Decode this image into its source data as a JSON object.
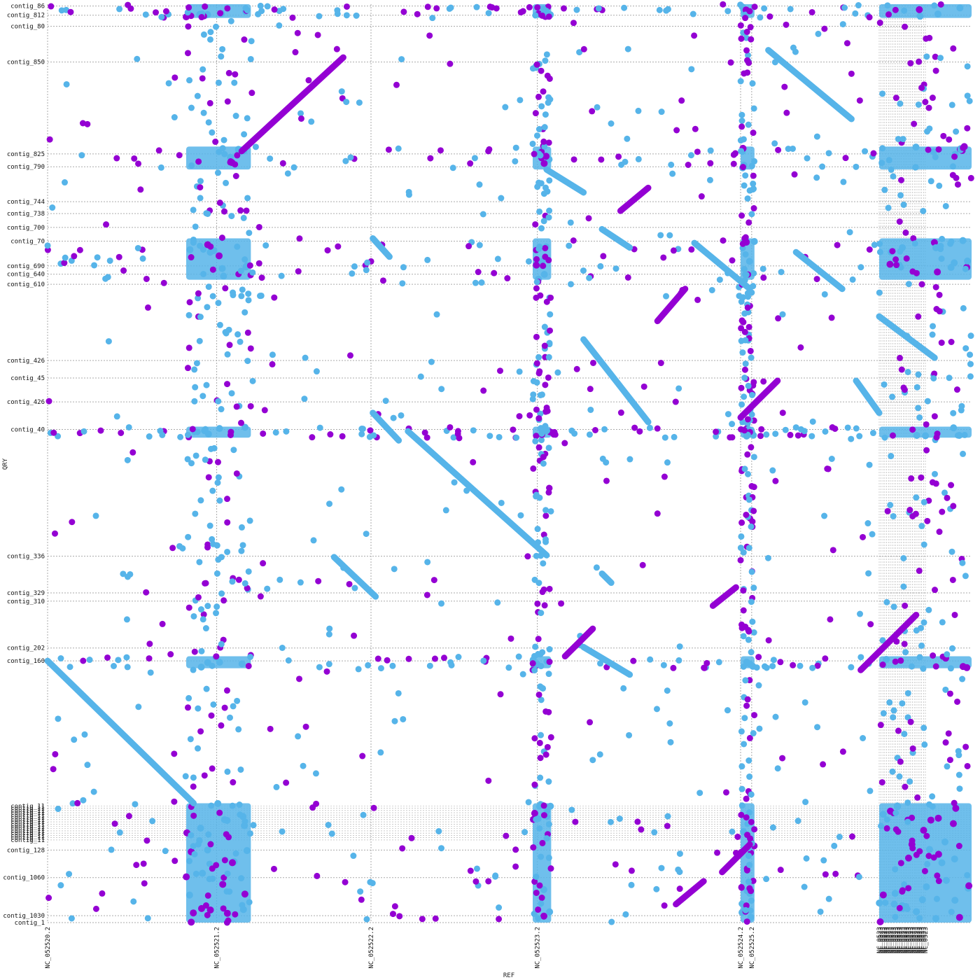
{
  "chart_data": {
    "type": "scatter",
    "title": "",
    "xlabel": "REF",
    "ylabel": "QRY",
    "grid": true,
    "colors": {
      "forward": "#9400d3",
      "reverse": "#56b4e9",
      "grid": "#aaaaaa"
    },
    "x_ticks": [
      {
        "label": "NC_052520.2",
        "value": 0.0
      },
      {
        "label": "NC_052521.2",
        "value": 0.183
      },
      {
        "label": "NC_052522.2",
        "value": 0.35
      },
      {
        "label": "NC_052523.2",
        "value": 0.53
      },
      {
        "label": "NC_052524.2",
        "value": 0.75
      },
      {
        "label": "NC_052525.2",
        "value": 0.762
      }
    ],
    "x_dense_ticks": {
      "label": "NC_0523",
      "from": 0.9,
      "to": 0.95,
      "count": 26
    },
    "y_ticks": [
      {
        "label": "contig_86",
        "value": 0.998
      },
      {
        "label": "contig_812",
        "value": 0.988
      },
      {
        "label": "contig_80",
        "value": 0.976
      },
      {
        "label": "contig_850",
        "value": 0.937
      },
      {
        "label": "contig_825",
        "value": 0.837
      },
      {
        "label": "contig_790",
        "value": 0.823
      },
      {
        "label": "contig_744",
        "value": 0.785
      },
      {
        "label": "contig_738",
        "value": 0.772
      },
      {
        "label": "contig_700",
        "value": 0.757
      },
      {
        "label": "contig_70",
        "value": 0.742
      },
      {
        "label": "contig_690",
        "value": 0.715
      },
      {
        "label": "contig_640",
        "value": 0.706
      },
      {
        "label": "contig_610",
        "value": 0.695
      },
      {
        "label": "contig_426",
        "value": 0.612
      },
      {
        "label": "contig_45",
        "value": 0.593
      },
      {
        "label": "contig_426",
        "value": 0.567
      },
      {
        "label": "contig_40",
        "value": 0.537
      },
      {
        "label": "contig_336",
        "value": 0.399
      },
      {
        "label": "contig_329",
        "value": 0.359
      },
      {
        "label": "contig_310",
        "value": 0.35
      },
      {
        "label": "contig_202",
        "value": 0.299
      },
      {
        "label": "contig_160",
        "value": 0.285
      },
      {
        "label": "contig_128",
        "value": 0.079
      },
      {
        "label": "contig_1060",
        "value": 0.049
      },
      {
        "label": "contig_1030",
        "value": 0.0075
      },
      {
        "label": "contig_1",
        "value": 0.0
      }
    ],
    "y_dense_ticks": {
      "label": "contig_11",
      "from": 0.09,
      "to": 0.127,
      "count": 16
    },
    "xlim": [
      0,
      1
    ],
    "ylim": [
      0,
      1
    ],
    "series": [
      {
        "name": "",
        "orientation": "reverse",
        "segments": [
          [
            0.0,
            0.285,
            0.158,
            0.13
          ],
          [
            0.352,
            0.555,
            0.38,
            0.525
          ],
          [
            0.39,
            0.535,
            0.54,
            0.4
          ],
          [
            0.31,
            0.398,
            0.355,
            0.355
          ],
          [
            0.352,
            0.745,
            0.37,
            0.725
          ],
          [
            0.58,
            0.635,
            0.65,
            0.545
          ],
          [
            0.54,
            0.82,
            0.58,
            0.795
          ],
          [
            0.6,
            0.755,
            0.63,
            0.735
          ],
          [
            0.9,
            0.66,
            0.96,
            0.615
          ],
          [
            0.78,
            0.95,
            0.87,
            0.875
          ],
          [
            0.875,
            0.59,
            0.9,
            0.555
          ],
          [
            0.58,
            0.3,
            0.63,
            0.27
          ],
          [
            0.7,
            0.74,
            0.76,
            0.69
          ],
          [
            0.81,
            0.73,
            0.86,
            0.69
          ],
          [
            0.6,
            0.38,
            0.61,
            0.37
          ]
        ]
      },
      {
        "name": "",
        "orientation": "forward",
        "segments": [
          [
            0.21,
            0.84,
            0.32,
            0.942
          ],
          [
            0.66,
            0.655,
            0.69,
            0.69
          ],
          [
            0.62,
            0.775,
            0.65,
            0.8
          ],
          [
            0.75,
            0.55,
            0.79,
            0.59
          ],
          [
            0.88,
            0.275,
            0.94,
            0.335
          ],
          [
            0.72,
            0.345,
            0.745,
            0.365
          ],
          [
            0.56,
            0.29,
            0.59,
            0.32
          ],
          [
            0.68,
            0.02,
            0.71,
            0.045
          ],
          [
            0.73,
            0.055,
            0.76,
            0.085
          ]
        ]
      }
    ],
    "dense_columns": [
      [
        0.15,
        0.22
      ],
      [
        0.525,
        0.545
      ],
      [
        0.75,
        0.765
      ],
      [
        0.9,
        1.0
      ]
    ],
    "dense_rows": [
      [
        0.985,
        1.0
      ],
      [
        0.82,
        0.845
      ],
      [
        0.7,
        0.745
      ],
      [
        0.528,
        0.54
      ],
      [
        0.277,
        0.29
      ],
      [
        0.0,
        0.13
      ]
    ],
    "scatter_density": 1700
  }
}
